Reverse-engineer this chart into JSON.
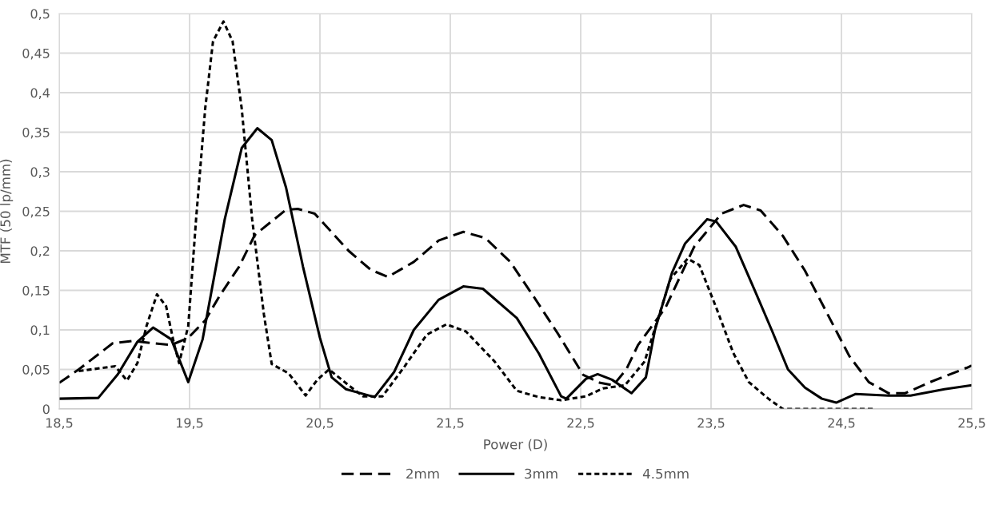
{
  "chart_data": {
    "type": "line",
    "xlabel": "Power (D)",
    "ylabel": "MTF (50 lp/mm)",
    "xlim": [
      18.5,
      25.5
    ],
    "xticks": [
      {
        "value": 18.5,
        "label": "18,5"
      },
      {
        "value": 19.5,
        "label": "19,5"
      },
      {
        "value": 20.5,
        "label": "20,5"
      },
      {
        "value": 21.5,
        "label": "21,5"
      },
      {
        "value": 22.5,
        "label": "22,5"
      },
      {
        "value": 23.5,
        "label": "23,5"
      },
      {
        "value": 24.5,
        "label": "24,5"
      },
      {
        "value": 25.5,
        "label": "25,5"
      }
    ],
    "ylim": [
      0,
      0.5
    ],
    "yticks": [
      0,
      {
        "value": 0.05,
        "label": "0,05"
      },
      {
        "value": 0.1,
        "label": "0,1"
      },
      {
        "value": 0.15,
        "label": "0,15"
      },
      {
        "value": 0.2,
        "label": "0,2"
      },
      {
        "value": 0.25,
        "label": "0,25"
      },
      {
        "value": 0.3,
        "label": "0,3"
      },
      {
        "value": 0.35,
        "label": "0,35"
      },
      {
        "value": 0.4,
        "label": "0,4"
      },
      {
        "value": 0.45,
        "label": "0,45"
      },
      {
        "value": 0.5,
        "label": "0,5"
      }
    ],
    "grid": true,
    "legend": "bottom",
    "marker": "none",
    "series": [
      {
        "name": "2mm",
        "color": "#000000",
        "line_style": "dashed",
        "x": [
          18.5,
          18.65,
          18.91,
          19.06,
          19.23,
          19.36,
          19.49,
          19.62,
          19.73,
          19.88,
          20.0,
          20.24,
          20.33,
          20.46,
          20.72,
          20.89,
          21.02,
          21.22,
          21.41,
          21.6,
          21.77,
          21.96,
          22.14,
          22.33,
          22.52,
          22.65,
          22.75,
          22.85,
          22.94,
          23.15,
          23.37,
          23.58,
          23.75,
          23.88,
          24.05,
          24.22,
          24.39,
          24.56,
          24.71,
          24.86,
          24.99,
          25.18,
          25.46,
          25.5
        ],
        "values": [
          0.033,
          0.05,
          0.083,
          0.086,
          0.083,
          0.081,
          0.09,
          0.112,
          0.143,
          0.18,
          0.22,
          0.252,
          0.253,
          0.247,
          0.2,
          0.176,
          0.167,
          0.186,
          0.213,
          0.224,
          0.216,
          0.186,
          0.142,
          0.094,
          0.043,
          0.033,
          0.03,
          0.05,
          0.081,
          0.128,
          0.205,
          0.247,
          0.258,
          0.251,
          0.219,
          0.175,
          0.121,
          0.067,
          0.034,
          0.02,
          0.02,
          0.034,
          0.052,
          0.055
        ]
      },
      {
        "name": "3mm",
        "color": "#000000",
        "line_style": "solid",
        "x": [
          18.5,
          18.8,
          18.95,
          19.1,
          19.22,
          19.36,
          19.49,
          19.6,
          19.77,
          19.9,
          20.02,
          20.13,
          20.24,
          20.37,
          20.5,
          20.59,
          20.7,
          20.92,
          21.07,
          21.22,
          21.41,
          21.6,
          21.75,
          22.01,
          22.18,
          22.35,
          22.39,
          22.54,
          22.63,
          22.74,
          22.89,
          23.0,
          23.07,
          23.2,
          23.3,
          23.47,
          23.54,
          23.69,
          23.84,
          23.97,
          24.09,
          24.22,
          24.35,
          24.46,
          24.61,
          24.86,
          25.03,
          25.29,
          25.5
        ],
        "values": [
          0.013,
          0.014,
          0.044,
          0.085,
          0.103,
          0.088,
          0.034,
          0.088,
          0.24,
          0.33,
          0.355,
          0.34,
          0.28,
          0.18,
          0.09,
          0.04,
          0.025,
          0.015,
          0.047,
          0.1,
          0.138,
          0.155,
          0.152,
          0.115,
          0.07,
          0.016,
          0.013,
          0.038,
          0.044,
          0.037,
          0.02,
          0.04,
          0.1,
          0.172,
          0.209,
          0.24,
          0.237,
          0.205,
          0.148,
          0.098,
          0.05,
          0.027,
          0.013,
          0.008,
          0.019,
          0.017,
          0.017,
          0.025,
          0.03
        ]
      },
      {
        "name": "4.5mm",
        "color": "#000000",
        "line_style": "dotted",
        "x": [
          18.65,
          18.93,
          19.02,
          19.1,
          19.17,
          19.25,
          19.32,
          19.38,
          19.42,
          19.49,
          19.55,
          19.62,
          19.68,
          19.76,
          19.83,
          19.9,
          19.98,
          20.07,
          20.13,
          20.26,
          20.33,
          20.39,
          20.48,
          20.57,
          20.72,
          20.83,
          20.98,
          21.15,
          21.32,
          21.47,
          21.62,
          21.84,
          22.01,
          22.18,
          22.35,
          22.54,
          22.67,
          22.84,
          22.99,
          23.19,
          23.32,
          23.41,
          23.54,
          23.67,
          23.79,
          23.94,
          24.05,
          24.75
        ],
        "values": [
          0.048,
          0.054,
          0.036,
          0.058,
          0.105,
          0.145,
          0.13,
          0.083,
          0.058,
          0.105,
          0.24,
          0.38,
          0.465,
          0.49,
          0.465,
          0.38,
          0.24,
          0.12,
          0.057,
          0.045,
          0.03,
          0.017,
          0.037,
          0.05,
          0.03,
          0.016,
          0.016,
          0.054,
          0.094,
          0.107,
          0.098,
          0.06,
          0.023,
          0.015,
          0.011,
          0.016,
          0.026,
          0.03,
          0.06,
          0.165,
          0.19,
          0.182,
          0.128,
          0.071,
          0.034,
          0.013,
          0,
          0
        ]
      }
    ]
  }
}
